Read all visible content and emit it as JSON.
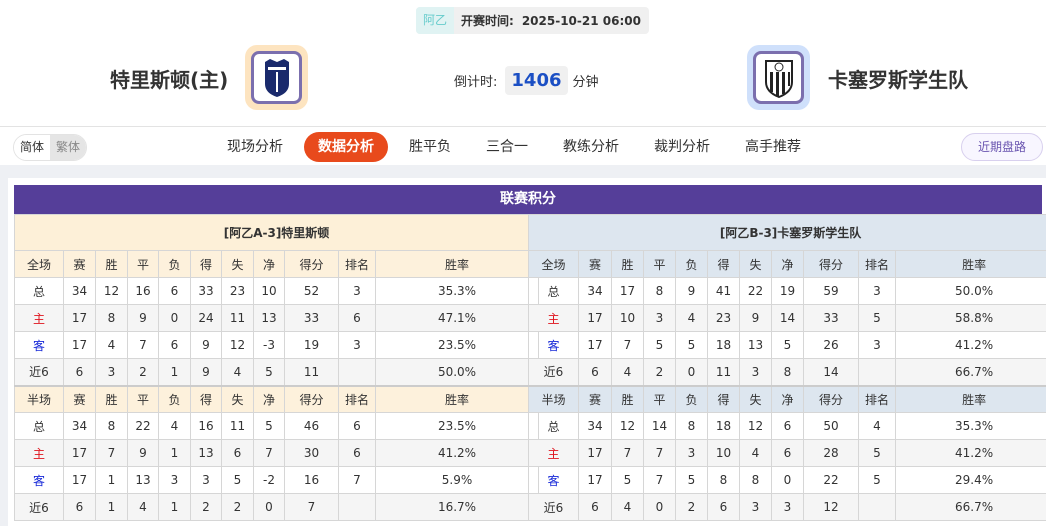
{
  "match": {
    "league": "阿乙",
    "kickoff_label": "开赛时间:",
    "kickoff": "2025-10-21 06:00",
    "home": "特里斯顿(主)",
    "away": "卡塞罗斯学生队",
    "countdown_label": "倒计时:",
    "countdown": "1406",
    "countdown_unit": "分钟"
  },
  "lang": {
    "simplified": "简体",
    "traditional": "繁体"
  },
  "nav": [
    {
      "label": "现场分析"
    },
    {
      "label": "数据分析",
      "active": true
    },
    {
      "label": "胜平负"
    },
    {
      "label": "三合一"
    },
    {
      "label": "教练分析"
    },
    {
      "label": "裁判分析"
    },
    {
      "label": "高手推荐"
    }
  ],
  "recent_button": "近期盘路",
  "section_title": "联赛积分",
  "colors": {
    "accent": "#e84a1c",
    "header": "#553e99",
    "home_label": "#e0141e",
    "away_label": "#1729d8"
  },
  "tables": [
    {
      "title": "[阿乙A-3]特里斯顿",
      "full_header": [
        "全场",
        "赛",
        "胜",
        "平",
        "负",
        "得",
        "失",
        "净",
        "得分",
        "排名",
        "胜率"
      ],
      "full_rows": [
        [
          "总",
          "34",
          "12",
          "16",
          "6",
          "33",
          "23",
          "10",
          "52",
          "3",
          "35.3%"
        ],
        [
          "主",
          "17",
          "8",
          "9",
          "0",
          "24",
          "11",
          "13",
          "33",
          "6",
          "47.1%"
        ],
        [
          "客",
          "17",
          "4",
          "7",
          "6",
          "9",
          "12",
          "-3",
          "19",
          "3",
          "23.5%"
        ],
        [
          "近6",
          "6",
          "3",
          "2",
          "1",
          "9",
          "4",
          "5",
          "11",
          "",
          "50.0%"
        ]
      ],
      "half_header": [
        "半场",
        "赛",
        "胜",
        "平",
        "负",
        "得",
        "失",
        "净",
        "得分",
        "排名",
        "胜率"
      ],
      "half_rows": [
        [
          "总",
          "34",
          "8",
          "22",
          "4",
          "16",
          "11",
          "5",
          "46",
          "6",
          "23.5%"
        ],
        [
          "主",
          "17",
          "7",
          "9",
          "1",
          "13",
          "6",
          "7",
          "30",
          "6",
          "41.2%"
        ],
        [
          "客",
          "17",
          "1",
          "13",
          "3",
          "3",
          "5",
          "-2",
          "16",
          "7",
          "5.9%"
        ],
        [
          "近6",
          "6",
          "1",
          "4",
          "1",
          "2",
          "2",
          "0",
          "7",
          "",
          "16.7%"
        ]
      ]
    },
    {
      "title": "[阿乙B-3]卡塞罗斯学生队",
      "full_header": [
        "全场",
        "赛",
        "胜",
        "平",
        "负",
        "得",
        "失",
        "净",
        "得分",
        "排名",
        "胜率"
      ],
      "full_rows": [
        [
          "总",
          "34",
          "17",
          "8",
          "9",
          "41",
          "22",
          "19",
          "59",
          "3",
          "50.0%"
        ],
        [
          "主",
          "17",
          "10",
          "3",
          "4",
          "23",
          "9",
          "14",
          "33",
          "5",
          "58.8%"
        ],
        [
          "客",
          "17",
          "7",
          "5",
          "5",
          "18",
          "13",
          "5",
          "26",
          "3",
          "41.2%"
        ],
        [
          "近6",
          "6",
          "4",
          "2",
          "0",
          "11",
          "3",
          "8",
          "14",
          "",
          "66.7%"
        ]
      ],
      "half_header": [
        "半场",
        "赛",
        "胜",
        "平",
        "负",
        "得",
        "失",
        "净",
        "得分",
        "排名",
        "胜率"
      ],
      "half_rows": [
        [
          "总",
          "34",
          "12",
          "14",
          "8",
          "18",
          "12",
          "6",
          "50",
          "4",
          "35.3%"
        ],
        [
          "主",
          "17",
          "7",
          "7",
          "3",
          "10",
          "4",
          "6",
          "28",
          "5",
          "41.2%"
        ],
        [
          "客",
          "17",
          "5",
          "7",
          "5",
          "8",
          "8",
          "0",
          "22",
          "5",
          "29.4%"
        ],
        [
          "近6",
          "6",
          "4",
          "0",
          "2",
          "6",
          "3",
          "3",
          "12",
          "",
          "66.7%"
        ]
      ]
    }
  ]
}
